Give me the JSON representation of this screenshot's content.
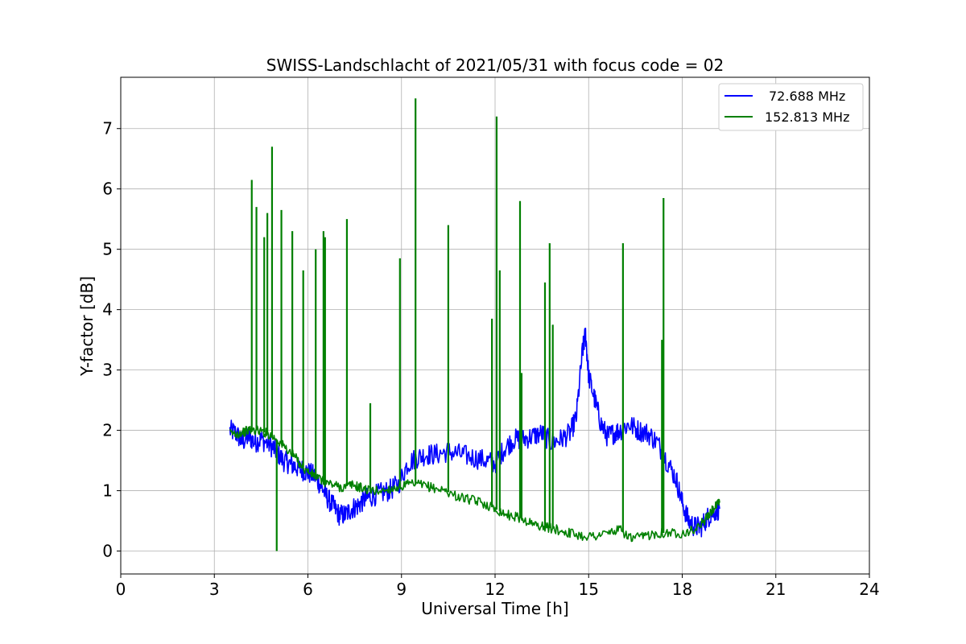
{
  "chart_data": {
    "type": "line",
    "title": "SWISS-Landschlacht of 2021/05/31 with focus code = 02",
    "xlabel": "Universal Time [h]",
    "ylabel": "Y-factor [dB]",
    "xlim": [
      0,
      24
    ],
    "ylim": [
      -0.38,
      7.85
    ],
    "xticks": [
      0,
      3,
      6,
      9,
      12,
      15,
      18,
      21,
      24
    ],
    "yticks": [
      0,
      1,
      2,
      3,
      4,
      5,
      6,
      7
    ],
    "grid": true,
    "legend_position": "top-right",
    "series": [
      {
        "name": "72.688 MHz",
        "color": "#0000ff",
        "points": [
          [
            3.5,
            2.0
          ],
          [
            3.7,
            1.95
          ],
          [
            3.9,
            1.8
          ],
          [
            4.1,
            1.9
          ],
          [
            4.3,
            1.8
          ],
          [
            4.5,
            1.85
          ],
          [
            4.8,
            1.75
          ],
          [
            5.0,
            1.65
          ],
          [
            5.2,
            1.5
          ],
          [
            5.4,
            1.45
          ],
          [
            5.6,
            1.4
          ],
          [
            5.8,
            1.35
          ],
          [
            6.0,
            1.3
          ],
          [
            6.2,
            1.25
          ],
          [
            6.4,
            1.1
          ],
          [
            6.6,
            0.9
          ],
          [
            6.8,
            0.75
          ],
          [
            7.0,
            0.6
          ],
          [
            7.2,
            0.6
          ],
          [
            7.4,
            0.7
          ],
          [
            7.6,
            0.75
          ],
          [
            7.8,
            0.85
          ],
          [
            8.0,
            0.9
          ],
          [
            8.3,
            0.95
          ],
          [
            8.6,
            1.0
          ],
          [
            8.9,
            1.1
          ],
          [
            9.2,
            1.45
          ],
          [
            9.5,
            1.55
          ],
          [
            9.8,
            1.6
          ],
          [
            10.1,
            1.6
          ],
          [
            10.5,
            1.65
          ],
          [
            10.9,
            1.6
          ],
          [
            11.3,
            1.55
          ],
          [
            11.7,
            1.5
          ],
          [
            12.0,
            1.45
          ],
          [
            12.3,
            1.7
          ],
          [
            12.6,
            1.85
          ],
          [
            12.9,
            1.85
          ],
          [
            13.2,
            1.9
          ],
          [
            13.5,
            1.95
          ],
          [
            13.8,
            1.8
          ],
          [
            14.1,
            1.85
          ],
          [
            14.4,
            1.95
          ],
          [
            14.6,
            2.2
          ],
          [
            14.8,
            3.3
          ],
          [
            14.9,
            3.6
          ],
          [
            15.0,
            2.9
          ],
          [
            15.2,
            2.5
          ],
          [
            15.4,
            2.1
          ],
          [
            15.6,
            1.9
          ],
          [
            15.8,
            1.95
          ],
          [
            16.0,
            2.0
          ],
          [
            16.3,
            2.1
          ],
          [
            16.6,
            2.0
          ],
          [
            16.9,
            1.95
          ],
          [
            17.2,
            1.8
          ],
          [
            17.5,
            1.5
          ],
          [
            17.8,
            1.2
          ],
          [
            18.0,
            0.8
          ],
          [
            18.2,
            0.5
          ],
          [
            18.4,
            0.4
          ],
          [
            18.6,
            0.4
          ],
          [
            18.8,
            0.55
          ],
          [
            19.0,
            0.65
          ],
          [
            19.2,
            0.7
          ]
        ]
      },
      {
        "name": "152.813 MHz",
        "color": "#008000",
        "points": [
          [
            3.5,
            1.95
          ],
          [
            3.8,
            1.95
          ],
          [
            4.1,
            2.0
          ],
          [
            4.4,
            2.0
          ],
          [
            4.7,
            1.95
          ],
          [
            5.0,
            1.85
          ],
          [
            5.3,
            1.7
          ],
          [
            5.6,
            1.55
          ],
          [
            5.9,
            1.35
          ],
          [
            6.2,
            1.25
          ],
          [
            6.5,
            1.15
          ],
          [
            6.8,
            1.1
          ],
          [
            7.1,
            1.05
          ],
          [
            7.4,
            1.1
          ],
          [
            7.7,
            1.05
          ],
          [
            8.0,
            1.0
          ],
          [
            8.4,
            1.0
          ],
          [
            8.8,
            1.05
          ],
          [
            9.2,
            1.1
          ],
          [
            9.6,
            1.1
          ],
          [
            10.0,
            1.05
          ],
          [
            10.4,
            1.0
          ],
          [
            10.8,
            0.9
          ],
          [
            11.2,
            0.85
          ],
          [
            11.6,
            0.8
          ],
          [
            12.0,
            0.7
          ],
          [
            12.4,
            0.6
          ],
          [
            12.8,
            0.55
          ],
          [
            13.2,
            0.45
          ],
          [
            13.6,
            0.4
          ],
          [
            14.0,
            0.35
          ],
          [
            14.4,
            0.3
          ],
          [
            14.8,
            0.25
          ],
          [
            15.2,
            0.25
          ],
          [
            15.6,
            0.3
          ],
          [
            16.0,
            0.35
          ],
          [
            16.4,
            0.2
          ],
          [
            16.8,
            0.25
          ],
          [
            17.2,
            0.3
          ],
          [
            17.6,
            0.3
          ],
          [
            18.0,
            0.3
          ],
          [
            18.4,
            0.35
          ],
          [
            18.8,
            0.55
          ],
          [
            19.0,
            0.7
          ],
          [
            19.2,
            0.8
          ]
        ],
        "spikes": [
          [
            4.2,
            6.15
          ],
          [
            4.35,
            5.7
          ],
          [
            4.6,
            5.2
          ],
          [
            4.7,
            5.6
          ],
          [
            4.85,
            6.7
          ],
          [
            5.0,
            0.0
          ],
          [
            5.15,
            5.65
          ],
          [
            5.5,
            5.3
          ],
          [
            5.85,
            4.65
          ],
          [
            6.25,
            5.0
          ],
          [
            6.5,
            5.3
          ],
          [
            6.55,
            5.2
          ],
          [
            7.25,
            5.5
          ],
          [
            8.0,
            2.45
          ],
          [
            8.95,
            4.85
          ],
          [
            9.45,
            7.5
          ],
          [
            10.5,
            5.4
          ],
          [
            11.9,
            3.85
          ],
          [
            12.05,
            7.2
          ],
          [
            12.15,
            4.65
          ],
          [
            12.8,
            5.8
          ],
          [
            12.85,
            2.95
          ],
          [
            13.6,
            4.45
          ],
          [
            13.75,
            5.1
          ],
          [
            13.85,
            3.75
          ],
          [
            16.1,
            5.1
          ],
          [
            17.35,
            3.5
          ],
          [
            17.4,
            5.85
          ]
        ]
      }
    ]
  }
}
